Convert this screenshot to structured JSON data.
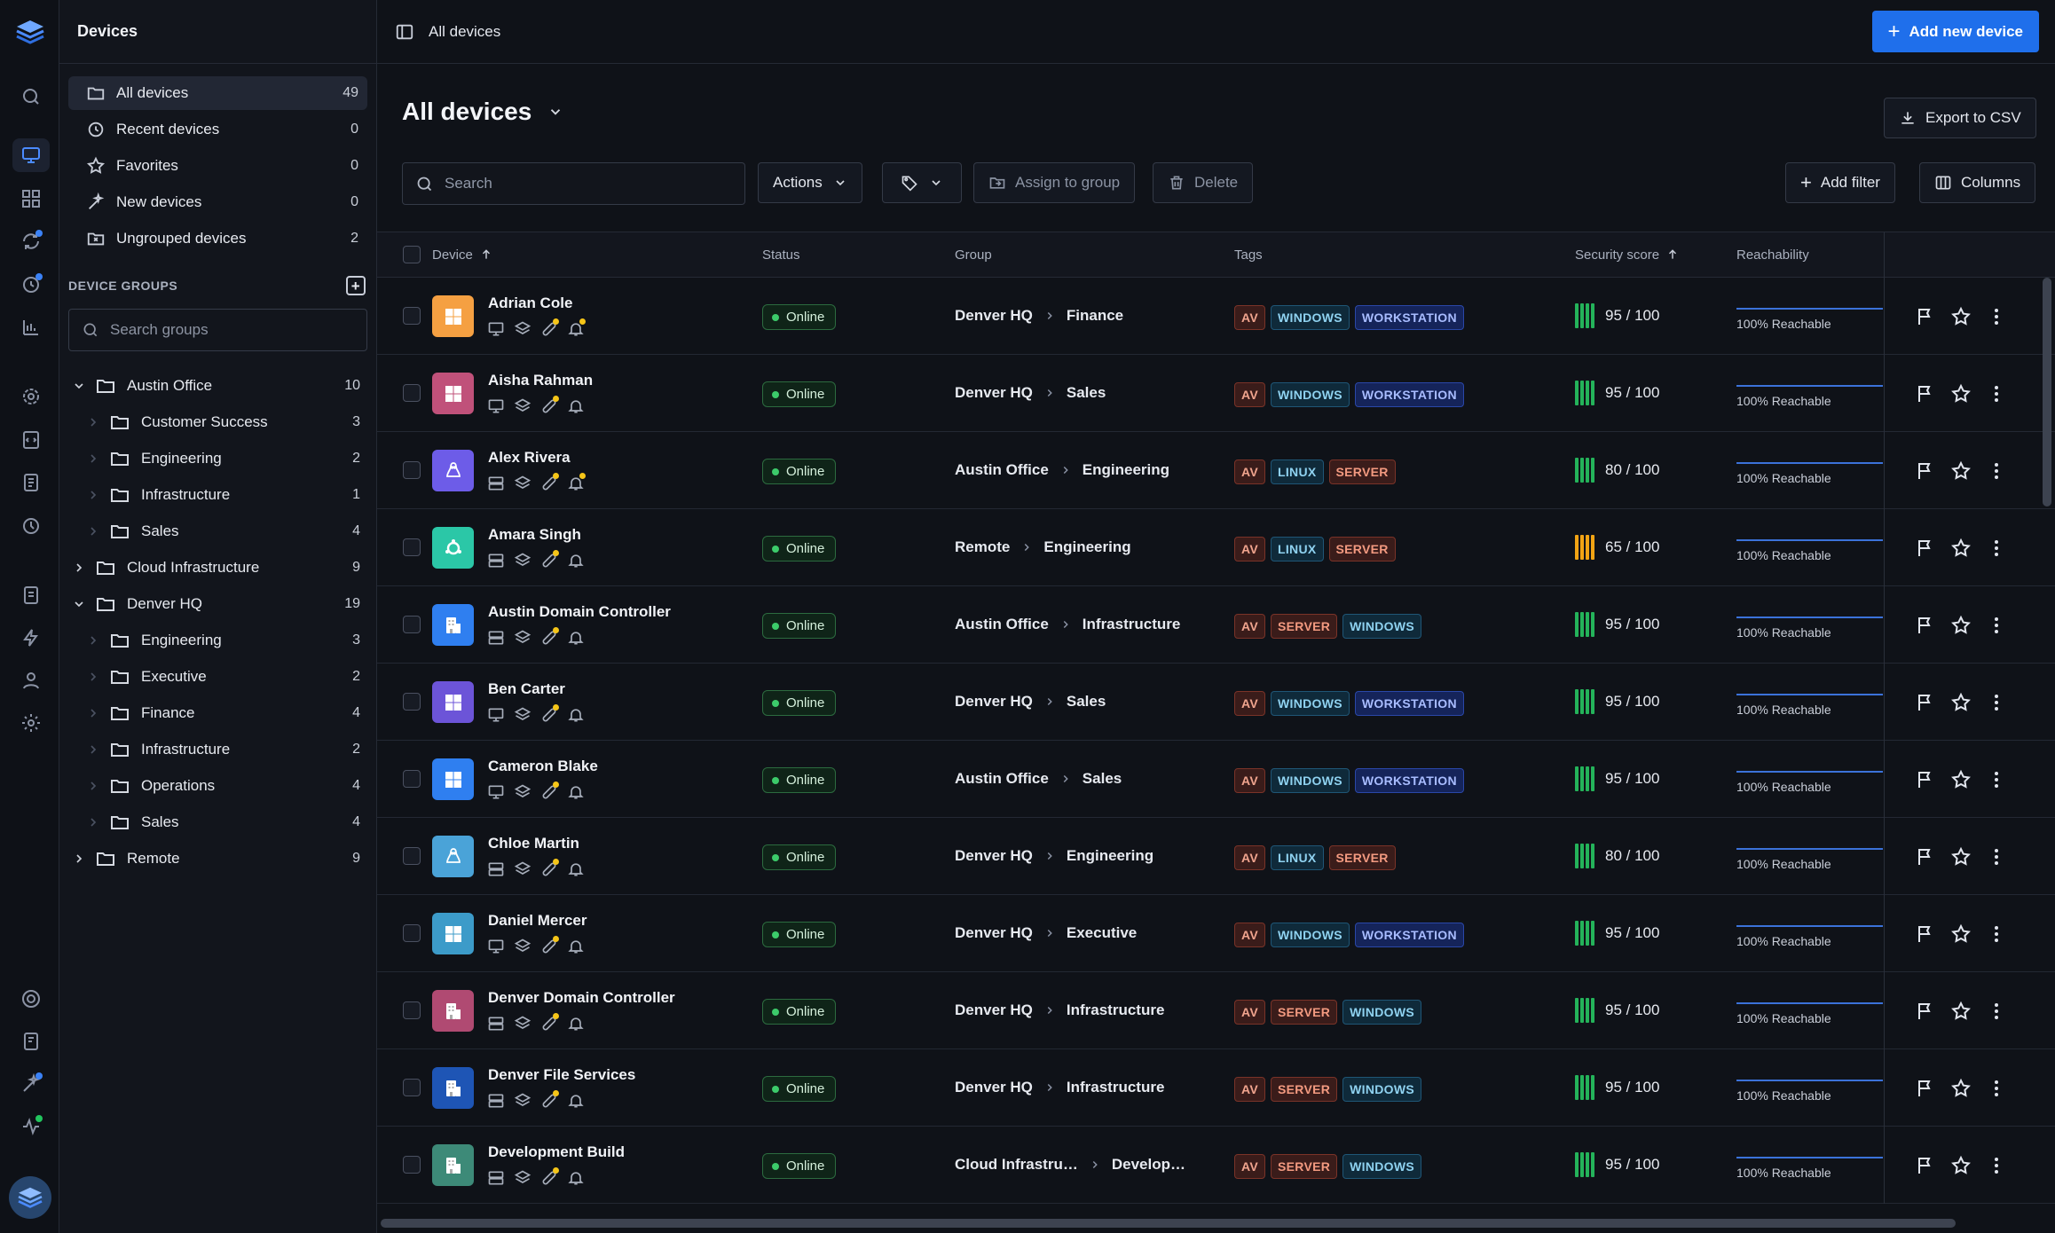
{
  "sidebar": {
    "title": "Devices",
    "nav": [
      {
        "label": "All devices",
        "count": "49",
        "icon": "folder-icon"
      },
      {
        "label": "Recent devices",
        "count": "0",
        "icon": "clock-icon"
      },
      {
        "label": "Favorites",
        "count": "0",
        "icon": "star-icon"
      },
      {
        "label": "New devices",
        "count": "0",
        "icon": "sparkle-icon"
      },
      {
        "label": "Ungrouped devices",
        "count": "2",
        "icon": "folder-x-icon"
      }
    ],
    "groups_title": "DEVICE GROUPS",
    "groups_search_placeholder": "Search groups",
    "tree": [
      {
        "label": "Austin Office",
        "count": "10",
        "expanded": true,
        "children": [
          {
            "label": "Customer Success",
            "count": "3"
          },
          {
            "label": "Engineering",
            "count": "2"
          },
          {
            "label": "Infrastructure",
            "count": "1"
          },
          {
            "label": "Sales",
            "count": "4"
          }
        ]
      },
      {
        "label": "Cloud Infrastructure",
        "count": "9",
        "expanded": false,
        "children": []
      },
      {
        "label": "Denver HQ",
        "count": "19",
        "expanded": true,
        "children": [
          {
            "label": "Engineering",
            "count": "3"
          },
          {
            "label": "Executive",
            "count": "2"
          },
          {
            "label": "Finance",
            "count": "4"
          },
          {
            "label": "Infrastructure",
            "count": "2"
          },
          {
            "label": "Operations",
            "count": "4"
          },
          {
            "label": "Sales",
            "count": "4"
          }
        ]
      },
      {
        "label": "Remote",
        "count": "9",
        "expanded": false,
        "children": []
      }
    ]
  },
  "topbar": {
    "breadcrumb": "All devices",
    "add_button": "Add new device"
  },
  "main": {
    "title": "All devices",
    "export_label": "Export to CSV",
    "search_placeholder": "Search",
    "actions_label": "Actions",
    "assign_label": "Assign to group",
    "delete_label": "Delete",
    "add_filter_label": "Add filter",
    "columns_label": "Columns"
  },
  "table": {
    "headers": {
      "device": "Device",
      "status": "Status",
      "group": "Group",
      "tags": "Tags",
      "score": "Security score",
      "reach": "Reachability"
    },
    "rows": [
      {
        "name": "Adrian Cole",
        "os": "windows",
        "color": "#f5a042",
        "type": "desktop",
        "alert": true,
        "status": "Online",
        "group": "Denver HQ",
        "subgroup": "Finance",
        "tags": [
          "AV",
          "WINDOWS",
          "WORKSTATION"
        ],
        "score": "95 / 100",
        "score_color": "green",
        "reach": "100% Reachable"
      },
      {
        "name": "Aisha Rahman",
        "os": "windows",
        "color": "#c0517a",
        "type": "desktop",
        "alert": false,
        "status": "Online",
        "group": "Denver HQ",
        "subgroup": "Sales",
        "tags": [
          "AV",
          "WINDOWS",
          "WORKSTATION"
        ],
        "score": "95 / 100",
        "score_color": "green",
        "reach": "100% Reachable"
      },
      {
        "name": "Alex Rivera",
        "os": "linux",
        "color": "#6d5ce8",
        "type": "server",
        "alert": true,
        "status": "Online",
        "group": "Austin Office",
        "subgroup": "Engineering",
        "tags": [
          "AV",
          "LINUX",
          "SERVER"
        ],
        "score": "80 / 100",
        "score_color": "green",
        "reach": "100% Reachable"
      },
      {
        "name": "Amara Singh",
        "os": "ubuntu",
        "color": "#2bc7a7",
        "type": "server",
        "alert": false,
        "status": "Online",
        "group": "Remote",
        "subgroup": "Engineering",
        "tags": [
          "AV",
          "LINUX",
          "SERVER"
        ],
        "score": "65 / 100",
        "score_color": "amber",
        "reach": "100% Reachable"
      },
      {
        "name": "Austin Domain Controller",
        "os": "building",
        "color": "#2f7ff0",
        "type": "server",
        "alert": false,
        "status": "Online",
        "group": "Austin Office",
        "subgroup": "Infrastructure",
        "tags": [
          "AV",
          "SERVER",
          "WINDOWS"
        ],
        "score": "95 / 100",
        "score_color": "green",
        "reach": "100% Reachable"
      },
      {
        "name": "Ben Carter",
        "os": "windows",
        "color": "#6c54d8",
        "type": "desktop",
        "alert": false,
        "status": "Online",
        "group": "Denver HQ",
        "subgroup": "Sales",
        "tags": [
          "AV",
          "WINDOWS",
          "WORKSTATION"
        ],
        "score": "95 / 100",
        "score_color": "green",
        "reach": "100% Reachable"
      },
      {
        "name": "Cameron Blake",
        "os": "windows",
        "color": "#2f7ff0",
        "type": "desktop",
        "alert": false,
        "status": "Online",
        "group": "Austin Office",
        "subgroup": "Sales",
        "tags": [
          "AV",
          "WINDOWS",
          "WORKSTATION"
        ],
        "score": "95 / 100",
        "score_color": "green",
        "reach": "100% Reachable"
      },
      {
        "name": "Chloe Martin",
        "os": "linux",
        "color": "#4aa3d8",
        "type": "server",
        "alert": false,
        "status": "Online",
        "group": "Denver HQ",
        "subgroup": "Engineering",
        "tags": [
          "AV",
          "LINUX",
          "SERVER"
        ],
        "score": "80 / 100",
        "score_color": "green",
        "reach": "100% Reachable"
      },
      {
        "name": "Daniel Mercer",
        "os": "windows",
        "color": "#3c9bc9",
        "type": "desktop",
        "alert": false,
        "status": "Online",
        "group": "Denver HQ",
        "subgroup": "Executive",
        "tags": [
          "AV",
          "WINDOWS",
          "WORKSTATION"
        ],
        "score": "95 / 100",
        "score_color": "green",
        "reach": "100% Reachable"
      },
      {
        "name": "Denver Domain Controller",
        "os": "building",
        "color": "#b04a72",
        "type": "server",
        "alert": false,
        "status": "Online",
        "group": "Denver HQ",
        "subgroup": "Infrastructure",
        "tags": [
          "AV",
          "SERVER",
          "WINDOWS"
        ],
        "score": "95 / 100",
        "score_color": "green",
        "reach": "100% Reachable"
      },
      {
        "name": "Denver File Services",
        "os": "building",
        "color": "#1e55b5",
        "type": "server",
        "alert": false,
        "status": "Online",
        "group": "Denver HQ",
        "subgroup": "Infrastructure",
        "tags": [
          "AV",
          "SERVER",
          "WINDOWS"
        ],
        "score": "95 / 100",
        "score_color": "green",
        "reach": "100% Reachable"
      },
      {
        "name": "Development Build",
        "os": "building",
        "color": "#3d8a78",
        "type": "server",
        "alert": false,
        "status": "Online",
        "group": "Cloud Infrastru…",
        "subgroup": "Develop…",
        "tags": [
          "AV",
          "SERVER",
          "WINDOWS"
        ],
        "score": "95 / 100",
        "score_color": "green",
        "reach": "100% Reachable"
      }
    ]
  }
}
